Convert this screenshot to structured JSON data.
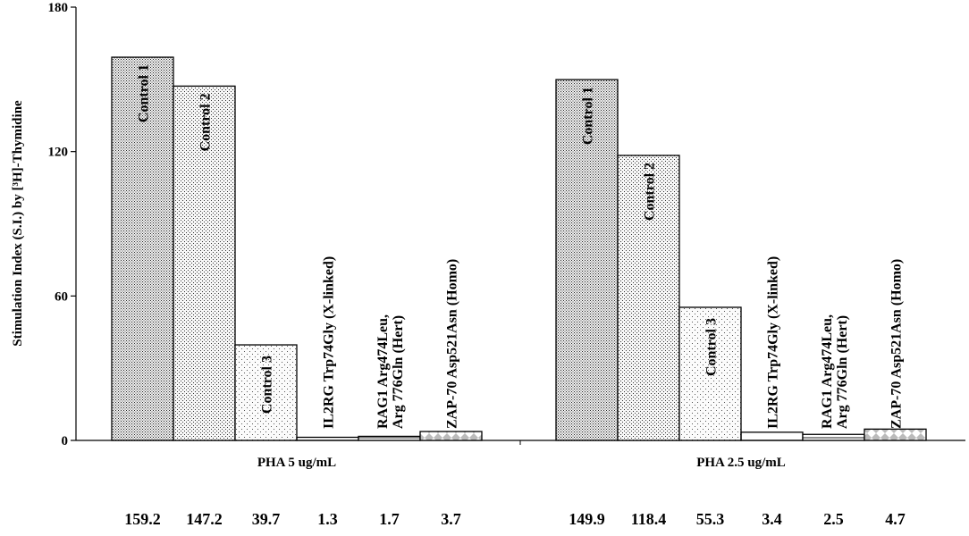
{
  "chart_data": {
    "type": "bar",
    "ylabel": "Stimulation Index (S.I.) by [³H]-Thymidine",
    "ylim": [
      0,
      180
    ],
    "yticks": [
      "0",
      "60",
      "120",
      "180"
    ],
    "grid": false,
    "groups": [
      {
        "label": "PHA 5 ug/mL",
        "bars": [
          {
            "name": "Control 1",
            "value": 159.2,
            "value_label": "159.2",
            "pattern": "dense-dots"
          },
          {
            "name": "Control 2",
            "value": 147.2,
            "value_label": "147.2",
            "pattern": "medium-dots"
          },
          {
            "name": "Control 3",
            "value": 39.7,
            "value_label": "39.7",
            "pattern": "sparse-dots"
          },
          {
            "name": "IL2RG Trp74Gly (X-linked)",
            "value": 1.3,
            "value_label": "1.3",
            "pattern": "white"
          },
          {
            "name": "RAG1 Arg474Leu,\nArg 776Gln (Hert)",
            "value": 1.7,
            "value_label": "1.7",
            "pattern": "hatch"
          },
          {
            "name": "ZAP-70 Asp521Asn (Homo)",
            "value": 3.7,
            "value_label": "3.7",
            "pattern": "diamond"
          }
        ]
      },
      {
        "label": "PHA 2.5 ug/mL",
        "bars": [
          {
            "name": "Control 1",
            "value": 149.9,
            "value_label": "149.9",
            "pattern": "dense-dots"
          },
          {
            "name": "Control 2",
            "value": 118.4,
            "value_label": "118.4",
            "pattern": "medium-dots"
          },
          {
            "name": "Control 3",
            "value": 55.3,
            "value_label": "55.3",
            "pattern": "sparse-dots"
          },
          {
            "name": "IL2RG Trp74Gly (X-linked)",
            "value": 3.4,
            "value_label": "3.4",
            "pattern": "white"
          },
          {
            "name": "RAG1 Arg474Leu,\nArg 776Gln (Hert)",
            "value": 2.5,
            "value_label": "2.5",
            "pattern": "hatch"
          },
          {
            "name": "ZAP-70 Asp521Asn (Homo)",
            "value": 4.7,
            "value_label": "4.7",
            "pattern": "diamond"
          }
        ]
      }
    ]
  }
}
